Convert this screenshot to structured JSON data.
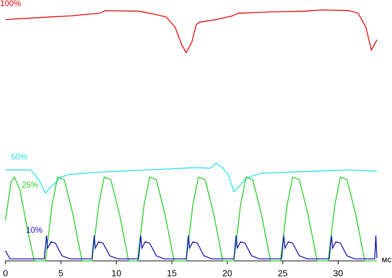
{
  "chart_data": {
    "type": "line",
    "x_label": "мс",
    "xlim": [
      0,
      33.5
    ],
    "xticks": [
      0,
      5,
      10,
      15,
      20,
      25,
      30
    ],
    "ylim": [
      0,
      100
    ],
    "series": [
      {
        "name": "100%",
        "color": "#e00000",
        "x": [
          0,
          2,
          4,
          6,
          8.5,
          9,
          12,
          13,
          14.5,
          15.3,
          15.9,
          16.3,
          16.8,
          17.2,
          17.5,
          19,
          20.5,
          21,
          24,
          27,
          28.5,
          31,
          31.8,
          32.5,
          33,
          33.5
        ],
        "values": [
          95,
          95.5,
          96,
          96.5,
          97.5,
          98.5,
          98.3,
          97.5,
          96,
          92,
          85,
          82,
          86,
          93,
          94,
          95,
          96.5,
          97.5,
          98,
          98.3,
          98.8,
          98.5,
          97.5,
          92,
          83,
          87
        ]
      },
      {
        "name": "50%",
        "color": "#22e0e8",
        "x": [
          0,
          2.3,
          3.0,
          3.6,
          4.2,
          5.0,
          5.7,
          8,
          11,
          14,
          17,
          18.5,
          19,
          19.5,
          20.1,
          20.6,
          21.2,
          21.7,
          23,
          26,
          29,
          31,
          33.5
        ],
        "values": [
          35.8,
          35.8,
          32,
          26.7,
          29.5,
          33,
          34,
          34.8,
          35.5,
          36,
          36.7,
          36.5,
          38.5,
          37,
          34,
          27.2,
          30,
          32.6,
          34.5,
          35,
          35.5,
          35.8,
          35.3
        ]
      },
      {
        "name": "25%",
        "color": "#22cc22",
        "x": [
          0,
          0.5,
          0.8,
          1.3,
          2.0,
          2.6,
          3.6,
          4.2,
          4.7,
          5.3,
          6.1,
          6.9,
          7.8,
          8.4,
          8.9,
          9.5,
          10.3,
          11.1,
          11.9,
          12.5,
          13.0,
          13.6,
          14.4,
          15.2,
          16.3,
          16.9,
          17.4,
          18.0,
          18.8,
          19.6,
          20.6,
          21.2,
          21.7,
          22.3,
          23.1,
          23.9,
          24.8,
          25.4,
          25.9,
          26.5,
          27.3,
          28.1,
          29.1,
          29.7,
          30.2,
          30.8,
          31.6,
          32.4,
          33.5
        ],
        "values": [
          16,
          31,
          33,
          28,
          12,
          0,
          0,
          22,
          33,
          32,
          18,
          0,
          0,
          22,
          33,
          32,
          18,
          0,
          0,
          22,
          33,
          32,
          18,
          0,
          0,
          22,
          33,
          32,
          18,
          0,
          0,
          22,
          33,
          32,
          18,
          0,
          0,
          22,
          33,
          32,
          18,
          0,
          0,
          22,
          33,
          32,
          18,
          0,
          0
        ]
      },
      {
        "name": "10%",
        "color": "#1010b0",
        "x": [
          0,
          0.4,
          3.5,
          3.7,
          3.8,
          4.1,
          4.5,
          5.1,
          5.8,
          7.8,
          8.0,
          8.1,
          8.4,
          8.8,
          9.4,
          10.1,
          12.0,
          12.2,
          12.3,
          12.6,
          13.0,
          13.6,
          14.3,
          16.3,
          16.5,
          16.6,
          16.9,
          17.3,
          17.9,
          18.6,
          20.6,
          20.8,
          20.9,
          21.2,
          21.6,
          22.2,
          22.9,
          24.9,
          25.1,
          25.2,
          25.5,
          25.9,
          26.5,
          27.2,
          29.2,
          29.4,
          29.5,
          29.8,
          30.2,
          30.8,
          31.5,
          33.3,
          33.4,
          33.5
        ],
        "values": [
          4,
          0.8,
          0.8,
          10,
          5,
          7.5,
          7,
          2,
          0.8,
          0.8,
          10,
          5,
          7.5,
          7,
          2,
          0.8,
          0.8,
          10,
          5,
          7.5,
          7,
          2,
          0.8,
          0.8,
          10,
          5,
          7.5,
          7,
          2,
          0.8,
          0.8,
          10,
          5,
          7.5,
          7,
          2,
          0.8,
          0.8,
          10,
          5,
          7.5,
          7,
          2,
          0.8,
          0.8,
          10,
          5,
          7.5,
          7,
          2,
          0.8,
          0.8,
          10,
          1
        ]
      }
    ]
  }
}
